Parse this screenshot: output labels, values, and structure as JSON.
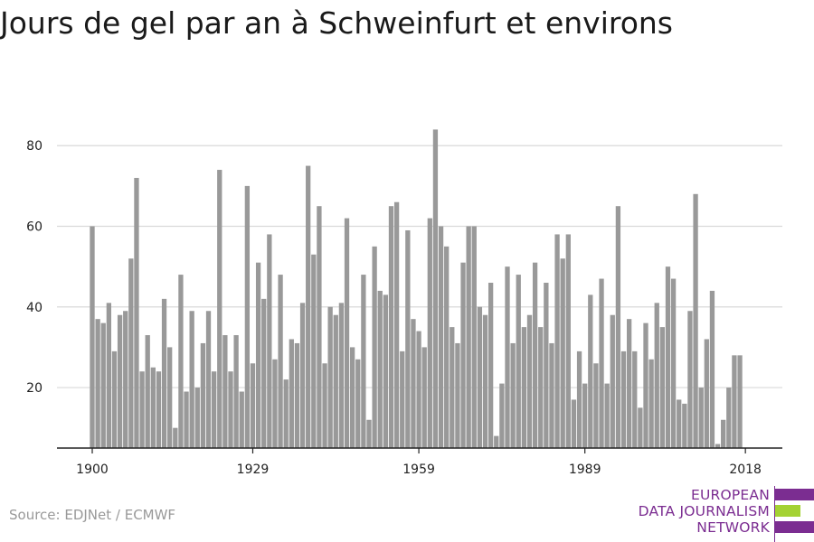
{
  "title": "Jours de gel par an à Schweinfurt et environs",
  "source": "Source: EDJNet / ECMWF",
  "logo": {
    "line1": "EUROPEAN",
    "line2": "DATA JOURNALISM",
    "line3": "NETWORK",
    "color_primary": "#7b2d91",
    "color_accent": "#a4d233"
  },
  "chart_data": {
    "type": "bar",
    "title": "Jours de gel par an à Schweinfurt et environs",
    "xlabel": "",
    "ylabel": "",
    "bar_color": "#999999",
    "grid": true,
    "x_start": 1900,
    "x_end": 2018,
    "x_ticks": [
      1900,
      1929,
      1959,
      1989,
      2018
    ],
    "y_ticks": [
      20,
      40,
      60,
      80
    ],
    "ylim": [
      5,
      87
    ],
    "values": [
      60,
      37,
      36,
      41,
      29,
      38,
      39,
      52,
      72,
      24,
      33,
      25,
      24,
      42,
      30,
      10,
      48,
      19,
      39,
      20,
      31,
      39,
      24,
      74,
      33,
      24,
      33,
      19,
      70,
      26,
      51,
      42,
      58,
      27,
      48,
      22,
      32,
      31,
      41,
      75,
      53,
      65,
      26,
      40,
      38,
      41,
      62,
      30,
      27,
      48,
      12,
      55,
      44,
      43,
      65,
      66,
      29,
      59,
      37,
      34,
      30,
      62,
      84,
      60,
      55,
      35,
      31,
      51,
      60,
      60,
      40,
      38,
      46,
      8,
      21,
      50,
      31,
      48,
      35,
      38,
      51,
      35,
      46,
      31,
      58,
      52,
      58,
      17,
      29,
      21,
      43,
      26,
      47,
      21,
      38,
      65,
      29,
      37,
      29,
      15,
      36,
      27,
      41,
      35,
      50,
      47,
      17,
      16,
      39,
      68,
      20,
      32,
      44,
      6,
      12,
      20,
      28,
      28
    ]
  }
}
